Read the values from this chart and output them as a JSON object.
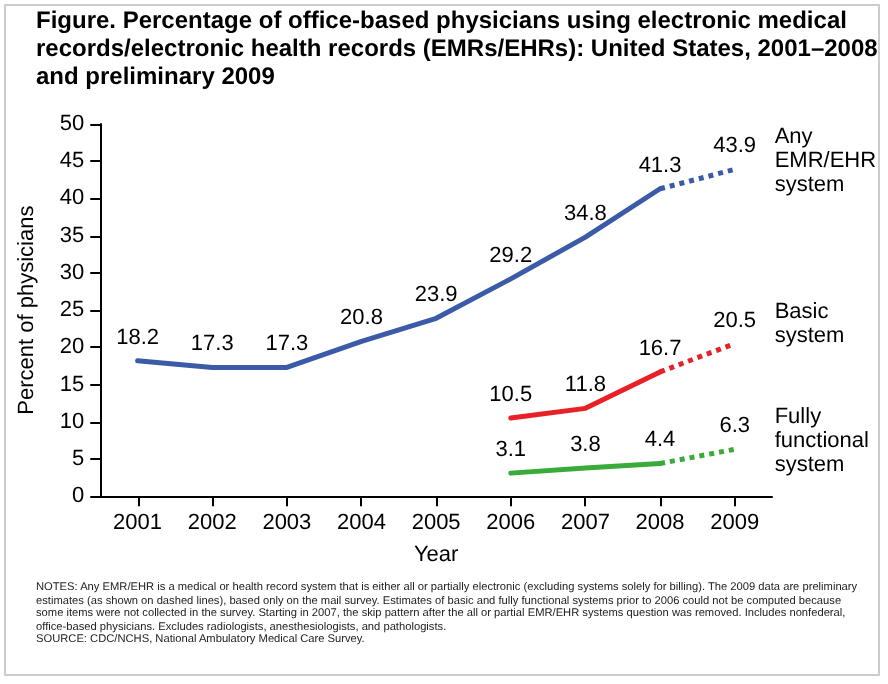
{
  "chart_data": {
    "type": "line",
    "title": "Figure. Percentage of office-based physicians using electronic medical records/electronic health records (EMRs/EHRs): United States, 2001–2008 and preliminary 2009",
    "xlabel": "Year",
    "ylabel": "Percent of physicians",
    "categories": [
      "2001",
      "2002",
      "2003",
      "2004",
      "2005",
      "2006",
      "2007",
      "2008",
      "2009"
    ],
    "ylim": [
      0,
      50
    ],
    "yticks": [
      0,
      5,
      10,
      15,
      20,
      25,
      30,
      35,
      40,
      45,
      50
    ],
    "grid": false,
    "marker": "none",
    "series": [
      {
        "name": "Any EMR/EHR system",
        "color": "#3b5ba9",
        "line_style": "solid",
        "values": [
          18.2,
          17.3,
          17.3,
          20.8,
          23.9,
          29.2,
          34.8,
          41.3,
          null
        ],
        "value_labels": [
          "18.2",
          "17.3",
          "17.3",
          "20.8",
          "23.9",
          "29.2",
          "34.8",
          "41.3",
          null
        ]
      },
      {
        "color": "#3b5ba9",
        "line_style": "dotted",
        "values": [
          null,
          null,
          null,
          null,
          null,
          null,
          null,
          41.3,
          43.9
        ],
        "value_labels": [
          null,
          null,
          null,
          null,
          null,
          null,
          null,
          null,
          "43.9"
        ]
      },
      {
        "name": "Basic system",
        "color": "#e82127",
        "line_style": "solid",
        "values": [
          null,
          null,
          null,
          null,
          null,
          10.5,
          11.8,
          16.7,
          null
        ],
        "value_labels": [
          null,
          null,
          null,
          null,
          null,
          "10.5",
          "11.8",
          "16.7",
          null
        ]
      },
      {
        "color": "#e82127",
        "line_style": "dotted",
        "values": [
          null,
          null,
          null,
          null,
          null,
          null,
          null,
          16.7,
          20.5
        ],
        "value_labels": [
          null,
          null,
          null,
          null,
          null,
          null,
          null,
          null,
          "20.5"
        ]
      },
      {
        "name": "Fully functional system",
        "color": "#3aaa3a",
        "line_style": "solid",
        "values": [
          null,
          null,
          null,
          null,
          null,
          3.1,
          3.8,
          4.4,
          null
        ],
        "value_labels": [
          null,
          null,
          null,
          null,
          null,
          "3.1",
          "3.8",
          "4.4",
          null
        ]
      },
      {
        "color": "#3aaa3a",
        "line_style": "dotted",
        "values": [
          null,
          null,
          null,
          null,
          null,
          null,
          null,
          4.4,
          6.3
        ],
        "value_labels": [
          null,
          null,
          null,
          null,
          null,
          null,
          null,
          null,
          "6.3"
        ]
      }
    ],
    "annotations": [
      "NOTES: Any EMR/EHR is a medical or health record system that is either all or partially electronic (excluding systems solely for billing). The 2009 data are preliminary estimates (as shown on dashed lines), based only on the mail survey. Estimates of basic and fully functional systems prior to 2006 could not be computed because some items were not collected in the survey. Starting in 2007, the skip pattern after the all or partial EMR/EHR systems question was removed. Includes nonfederal, office-based physicians. Excludes radiologists, anesthesiologists, and pathologists.",
      "SOURCE: CDC/NCHS, National Ambulatory Medical Care Survey."
    ]
  }
}
